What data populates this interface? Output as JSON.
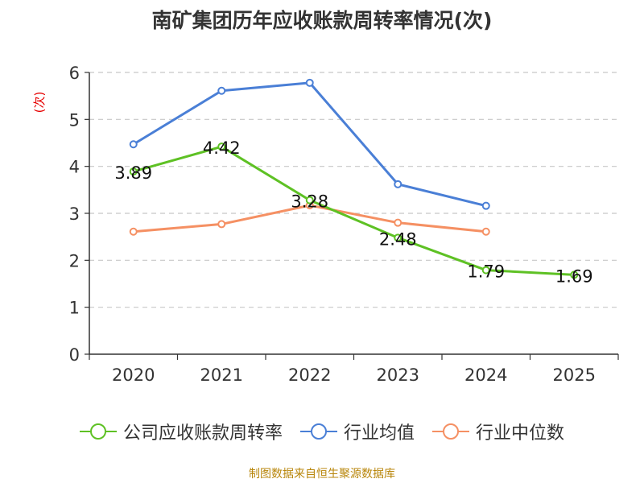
{
  "chart_data": {
    "type": "line",
    "title": "南矿集团历年应收账款周转率情况(次)",
    "ylabel": "(次)",
    "xlabel": "",
    "ylim": [
      0,
      6
    ],
    "yticks": [
      0,
      1,
      2,
      3,
      4,
      5,
      6
    ],
    "categories": [
      "2020",
      "2021",
      "2022",
      "2023",
      "2024",
      "2025"
    ],
    "grid": true,
    "legend_position": "bottom",
    "series": [
      {
        "name": "公司应收账款周转率",
        "color": "#5ec124",
        "values": [
          3.89,
          4.42,
          3.28,
          2.48,
          1.79,
          1.69
        ],
        "labels": [
          "3.89",
          "4.42",
          "3.28",
          "2.48",
          "1.79",
          "1.69"
        ]
      },
      {
        "name": "行业均值",
        "color": "#4a7fd6",
        "values": [
          4.47,
          5.61,
          5.78,
          3.62,
          3.16,
          null
        ]
      },
      {
        "name": "行业中位数",
        "color": "#f59063",
        "values": [
          2.61,
          2.77,
          3.17,
          2.8,
          2.61,
          null
        ]
      }
    ]
  },
  "source": "制图数据来自恒生聚源数据库"
}
